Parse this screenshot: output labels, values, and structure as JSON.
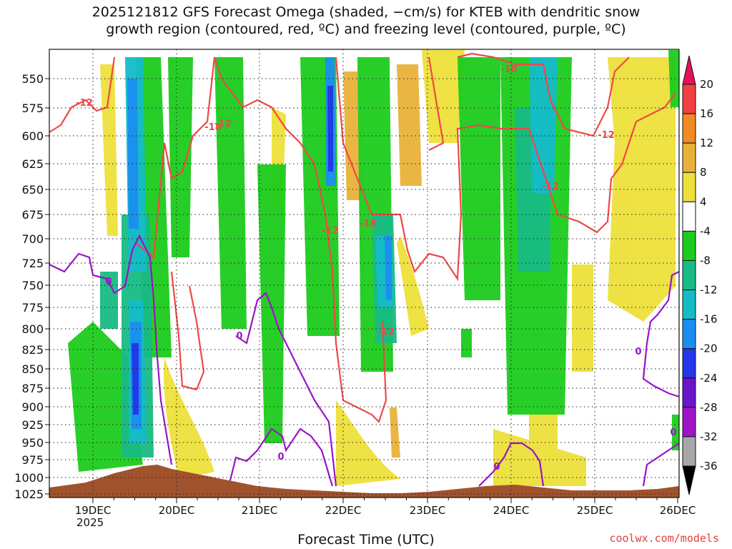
{
  "title_line1": "2025121812 GFS Forecast Omega (shaded, −cm/s) for KTEB with dendritic snow",
  "title_line2": "growth region (contoured, red, ºC) and freezing level (contoured, purple, ºC)",
  "credit": "coolwx.com/models",
  "chart_data": {
    "type": "heatmap",
    "title": "2025121812 GFS Forecast Omega (shaded, −cm/s) for KTEB with dendritic snow growth region (contoured, red, ºC) and freezing level (contoured, purple, ºC)",
    "xlabel": "Forecast Time (UTC)",
    "ylabel": "",
    "year_label": "2025",
    "x_ticks": [
      "19DEC",
      "20DEC",
      "21DEC",
      "22DEC",
      "23DEC",
      "24DEC",
      "25DEC",
      "26DEC"
    ],
    "y_ticks": [
      "550",
      "575",
      "600",
      "625",
      "650",
      "675",
      "700",
      "725",
      "750",
      "775",
      "800",
      "825",
      "850",
      "875",
      "900",
      "925",
      "950",
      "975",
      "1000",
      "1025"
    ],
    "grid": true,
    "colorbar": {
      "labels": [
        "20",
        "16",
        "12",
        "8",
        "4",
        "-4",
        "-8",
        "-12",
        "-16",
        "-20",
        "-24",
        "-28",
        "-32",
        "-36"
      ],
      "colors": [
        "#e8105a",
        "#f04040",
        "#f08a24",
        "#e8b23a",
        "#ede03a",
        "#ffffff",
        "#1ccc1c",
        "#18bb84",
        "#14bcc8",
        "#1a8ef0",
        "#2436e8",
        "#6a14cc",
        "#a014c8",
        "#a8a8a8",
        "#000000"
      ]
    },
    "contour_labels": {
      "dgz": [
        "-12",
        "-12",
        "-18",
        "-12",
        "-18",
        "-12",
        "-18",
        "-12",
        "-12"
      ],
      "freezing": [
        "0",
        "0",
        "0",
        "0",
        "0",
        "0"
      ]
    },
    "colors": {
      "dgz_contour": "#f04848",
      "freezing_contour": "#9a14c8",
      "terrain": "#a0522d"
    }
  }
}
